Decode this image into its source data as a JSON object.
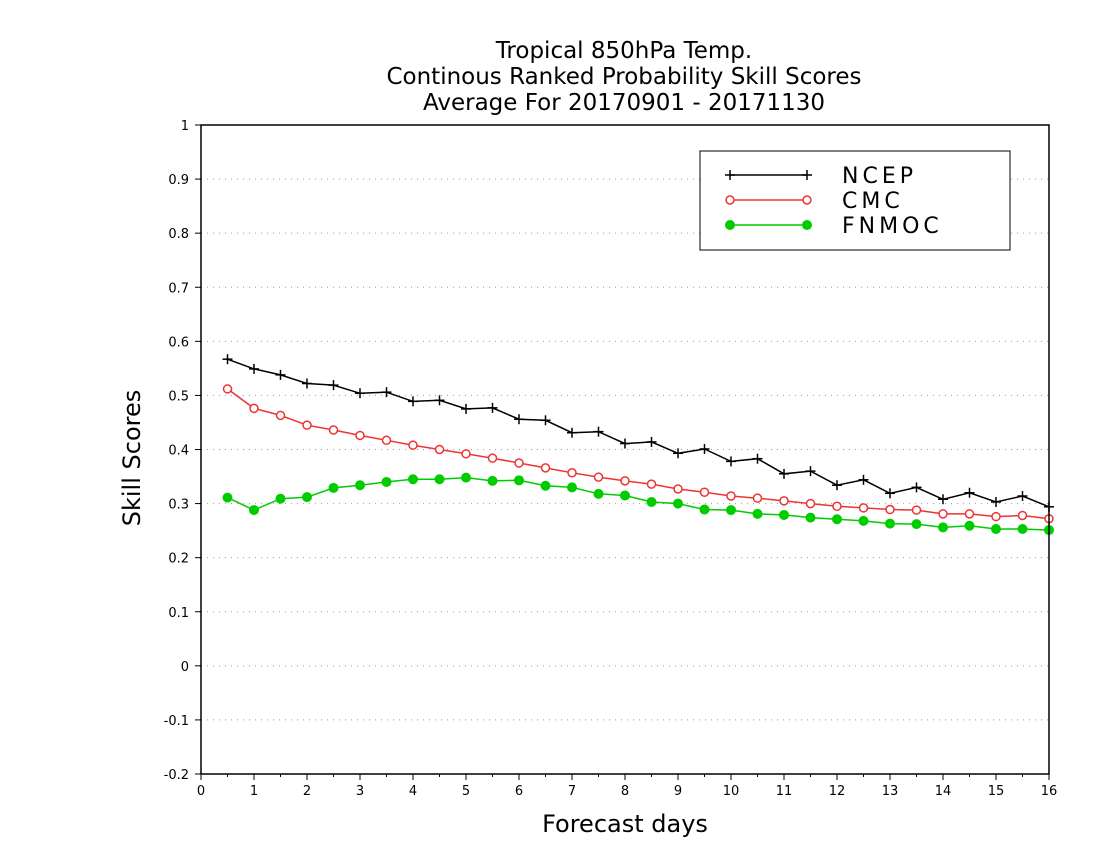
{
  "chart_data": {
    "type": "line",
    "title": [
      "Tropical 850hPa Temp.",
      "Continous Ranked Probability Skill Scores",
      "Average For 20170901 - 20171130"
    ],
    "xlabel": "Forecast days",
    "ylabel": "Skill Scores",
    "xlim": [
      0,
      16
    ],
    "ylim": [
      -0.2,
      1
    ],
    "xticks": [
      "0",
      "1",
      "2",
      "3",
      "4",
      "5",
      "6",
      "7",
      "8",
      "9",
      "10",
      "11",
      "12",
      "13",
      "14",
      "15",
      "16"
    ],
    "yticks": [
      "-0.2",
      "-0.1",
      "0",
      "0.1",
      "0.2",
      "0.3",
      "0.4",
      "0.5",
      "0.6",
      "0.7",
      "0.8",
      "0.9",
      "1"
    ],
    "grid": "horizontal-dotted",
    "legend_position": "top-right",
    "x": [
      0.5,
      1,
      1.5,
      2,
      2.5,
      3,
      3.5,
      4,
      4.5,
      5,
      5.5,
      6,
      6.5,
      7,
      7.5,
      8,
      8.5,
      9,
      9.5,
      10,
      10.5,
      11,
      11.5,
      12,
      12.5,
      13,
      13.5,
      14,
      14.5,
      15,
      15.5,
      16
    ],
    "series": [
      {
        "name": "NCEP",
        "color": "#000000",
        "marker": "plus",
        "values": [
          0.567,
          0.549,
          0.538,
          0.522,
          0.519,
          0.504,
          0.506,
          0.489,
          0.491,
          0.475,
          0.477,
          0.456,
          0.454,
          0.431,
          0.433,
          0.411,
          0.414,
          0.393,
          0.401,
          0.378,
          0.383,
          0.355,
          0.36,
          0.334,
          0.344,
          0.319,
          0.33,
          0.308,
          0.32,
          0.303,
          0.314,
          0.294
        ]
      },
      {
        "name": "CMC",
        "color": "#ee3333",
        "marker": "open-circle",
        "values": [
          0.512,
          0.476,
          0.463,
          0.445,
          0.436,
          0.426,
          0.417,
          0.408,
          0.4,
          0.392,
          0.384,
          0.375,
          0.366,
          0.357,
          0.349,
          0.342,
          0.336,
          0.327,
          0.321,
          0.314,
          0.31,
          0.305,
          0.3,
          0.295,
          0.292,
          0.289,
          0.288,
          0.281,
          0.281,
          0.276,
          0.278,
          0.272
        ]
      },
      {
        "name": "FNMOC",
        "color": "#00cc00",
        "marker": "filled-circle",
        "values": [
          0.311,
          0.288,
          0.309,
          0.312,
          0.329,
          0.334,
          0.34,
          0.345,
          0.345,
          0.348,
          0.342,
          0.343,
          0.333,
          0.33,
          0.318,
          0.315,
          0.303,
          0.3,
          0.289,
          0.288,
          0.281,
          0.279,
          0.274,
          0.271,
          0.268,
          0.263,
          0.262,
          0.256,
          0.259,
          0.253,
          0.253,
          0.251
        ]
      }
    ]
  }
}
